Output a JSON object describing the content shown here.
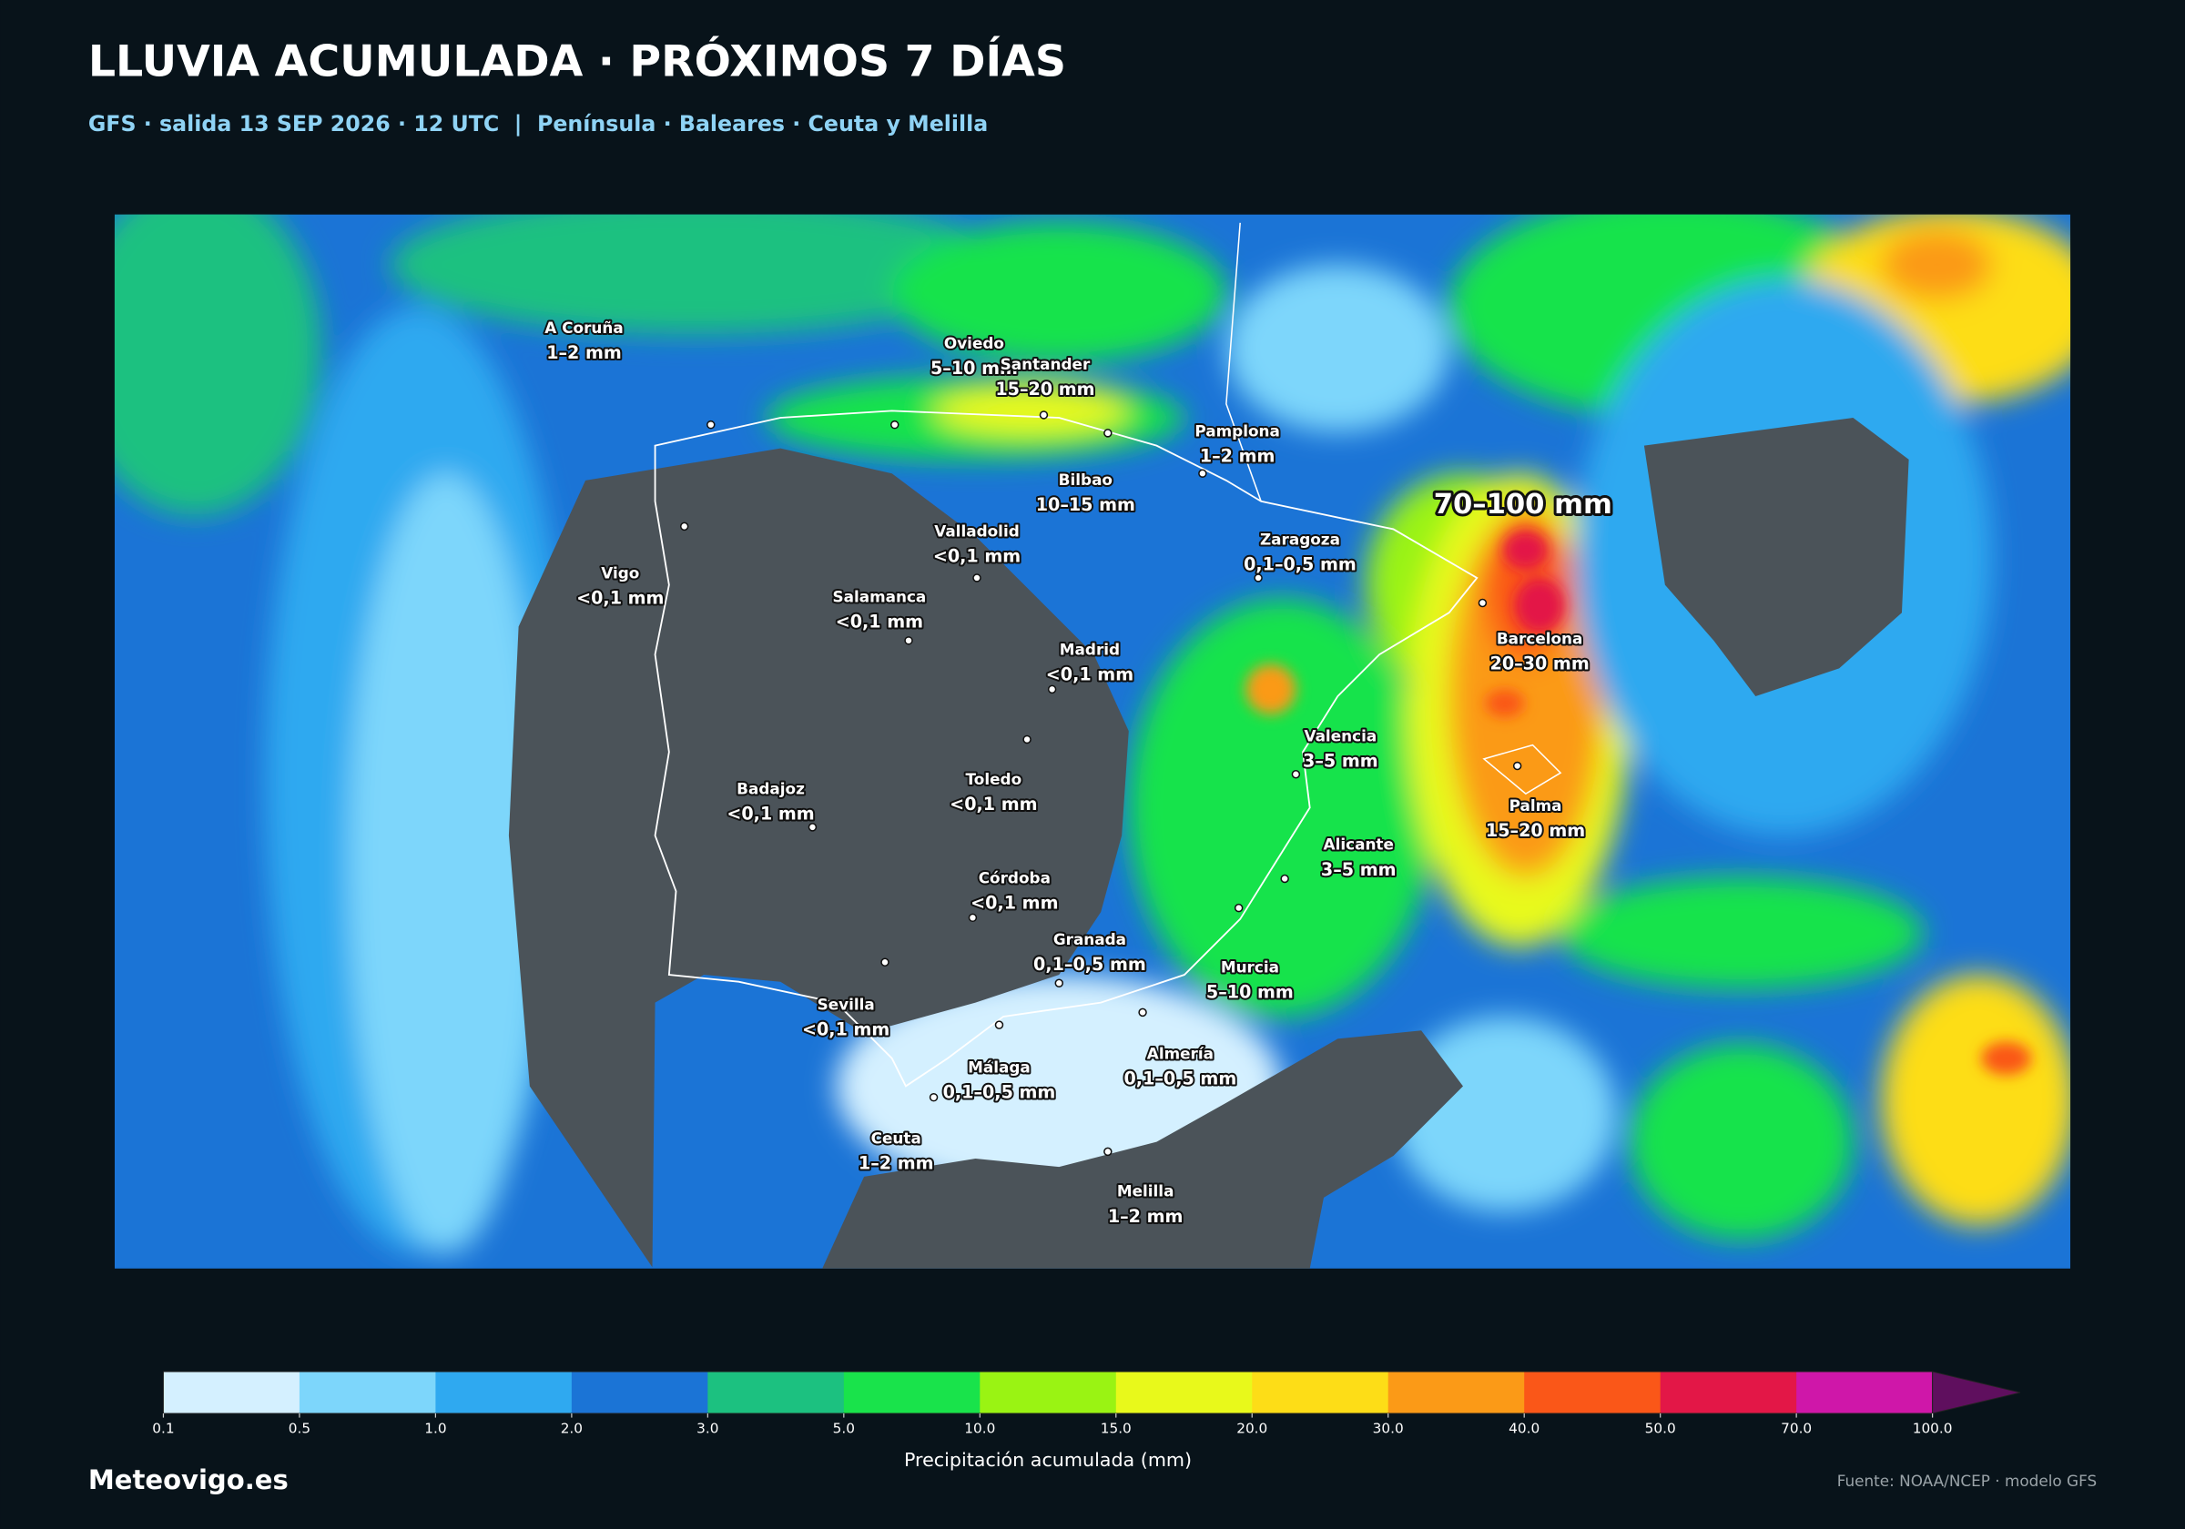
{
  "header": {
    "title": "LLUVIA ACUMULADA · PRÓXIMOS 7 DÍAS",
    "subtitle": "GFS · salida 13 SEP 2026 · 12 UTC  |  Península · Baleares · Ceuta y Melilla"
  },
  "map": {
    "annotation": "70–100 mm",
    "labels": [
      {
        "name": "A Coruña",
        "amount": "1–2 mm"
      },
      {
        "name": "Oviedo",
        "amount": "5–10 mm"
      },
      {
        "name": "Santander",
        "amount": "15–20 mm"
      },
      {
        "name": "Pamplona",
        "amount": "1–2 mm"
      },
      {
        "name": "Bilbao",
        "amount": "10–15 mm"
      },
      {
        "name": "Valladolid",
        "amount": "<0,1 mm"
      },
      {
        "name": "Zaragoza",
        "amount": "0,1–0,5 mm"
      },
      {
        "name": "Vigo",
        "amount": "<0,1 mm"
      },
      {
        "name": "Salamanca",
        "amount": "<0,1 mm"
      },
      {
        "name": "Barcelona",
        "amount": "20–30 mm"
      },
      {
        "name": "Madrid",
        "amount": "<0,1 mm"
      },
      {
        "name": "Valencia",
        "amount": "3–5 mm"
      },
      {
        "name": "Toledo",
        "amount": "<0,1 mm"
      },
      {
        "name": "Badajoz",
        "amount": "<0,1 mm"
      },
      {
        "name": "Palma",
        "amount": "15–20 mm"
      },
      {
        "name": "Alicante",
        "amount": "3–5 mm"
      },
      {
        "name": "Córdoba",
        "amount": "<0,1 mm"
      },
      {
        "name": "Granada",
        "amount": "0,1–0,5 mm"
      },
      {
        "name": "Murcia",
        "amount": "5–10 mm"
      },
      {
        "name": "Sevilla",
        "amount": "<0,1 mm"
      },
      {
        "name": "Almería",
        "amount": "0,1–0,5 mm"
      },
      {
        "name": "Málaga",
        "amount": "0,1–0,5 mm"
      },
      {
        "name": "Ceuta",
        "amount": "1–2 mm"
      },
      {
        "name": "Melilla",
        "amount": "1–2 mm"
      }
    ]
  },
  "colorbar": {
    "label": "Precipitación acumulada (mm)",
    "colors": [
      "#d4f0ff",
      "#7dd6fb",
      "#2fa9f0",
      "#1b74d6",
      "#1cc180",
      "#19e34b",
      "#9af313",
      "#e8f91b",
      "#fddd17",
      "#fb9a17",
      "#fa5718",
      "#e31747",
      "#cf17a9"
    ],
    "extend_color": "#5f0f5e",
    "ticks": [
      0.1,
      0.5,
      {
        "value": 1,
        "label": "1.0"
      },
      {
        "value": 2,
        "label": "2.0"
      },
      {
        "value": 3,
        "label": "3.0"
      },
      {
        "value": 5,
        "label": "5.0"
      },
      {
        "value": 10,
        "label": "10.0"
      },
      {
        "value": 15,
        "label": "15.0"
      },
      {
        "value": 20,
        "label": "20.0"
      },
      {
        "value": 30,
        "label": "30.0"
      },
      {
        "value": 40,
        "label": "40.0"
      },
      {
        "value": 50,
        "label": "50.0"
      },
      {
        "value": 70,
        "label": "70.0"
      },
      {
        "value": 100,
        "label": "100.0"
      }
    ]
  },
  "footer": {
    "brand": "Meteovigo.es",
    "source": "Fuente: NOAA/NCEP · modelo GFS"
  }
}
